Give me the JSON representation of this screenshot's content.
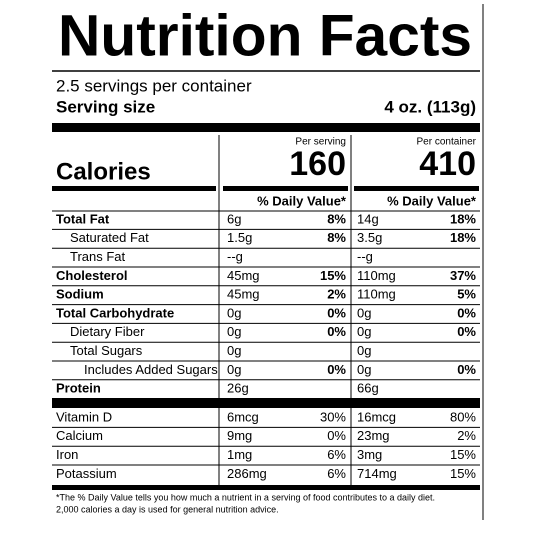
{
  "header": {
    "title": "Nutrition Facts",
    "servings": "2.5 servings per container",
    "serving_size_label": "Serving size",
    "serving_size": "4 oz. (113g)"
  },
  "calories": {
    "label": "Calories",
    "per_serving_label": "Per serving",
    "per_serving": 160,
    "per_container_label": "Per container",
    "per_container": 410
  },
  "daily_value_header": "% Daily Value*",
  "nutrients": [
    {
      "name": "Total Fat",
      "bold": true,
      "indent": 0,
      "serving_amount": "6g",
      "serving_dv": "8%",
      "container_amount": "14g",
      "container_dv": "18%"
    },
    {
      "name": "Saturated Fat",
      "bold": false,
      "indent": 1,
      "serving_amount": "1.5g",
      "serving_dv": "8%",
      "container_amount": "3.5g",
      "container_dv": "18%"
    },
    {
      "name": "Trans Fat",
      "bold": false,
      "indent": 1,
      "serving_amount": "--g",
      "container_amount": "--g"
    },
    {
      "name": "Cholesterol",
      "bold": true,
      "indent": 0,
      "serving_amount": "45mg",
      "serving_dv": "15%",
      "container_amount": "110mg",
      "container_dv": "37%"
    },
    {
      "name": "Sodium",
      "bold": true,
      "indent": 0,
      "serving_amount": "45mg",
      "serving_dv": "2%",
      "container_amount": "110mg",
      "container_dv": "5%"
    },
    {
      "name": "Total Carbohydrate",
      "bold": true,
      "indent": 0,
      "serving_amount": "0g",
      "serving_dv": "0%",
      "container_amount": "0g",
      "container_dv": "0%"
    },
    {
      "name": "Dietary Fiber",
      "bold": false,
      "indent": 1,
      "serving_amount": "0g",
      "serving_dv": "0%",
      "container_amount": "0g",
      "container_dv": "0%"
    },
    {
      "name": "Total Sugars",
      "bold": false,
      "indent": 1,
      "serving_amount": "0g",
      "container_amount": "0g"
    },
    {
      "name": "Includes Added Sugars",
      "bold": false,
      "indent": 2,
      "serving_amount": "0g",
      "serving_dv": "0%",
      "container_amount": "0g",
      "container_dv": "0%"
    },
    {
      "name": "Protein",
      "bold": true,
      "indent": 0,
      "serving_amount": "26g",
      "container_amount": "66g"
    }
  ],
  "vitamins": [
    {
      "name": "Vitamin D",
      "serving_amount": "6mcg",
      "serving_dv": "30%",
      "container_amount": "16mcg",
      "container_dv": "80%"
    },
    {
      "name": "Calcium",
      "serving_amount": "9mg",
      "serving_dv": "0%",
      "container_amount": "23mg",
      "container_dv": "2%"
    },
    {
      "name": "Iron",
      "serving_amount": "1mg",
      "serving_dv": "6%",
      "container_amount": "3mg",
      "container_dv": "15%"
    },
    {
      "name": "Potassium",
      "serving_amount": "286mg",
      "serving_dv": "6%",
      "container_amount": "714mg",
      "container_dv": "15%"
    }
  ],
  "footnote": [
    "*The % Daily Value tells you how much a nutrient in a serving of food contributes to a daily diet.",
    "2,000 calories a day is used for general nutrition advice."
  ]
}
